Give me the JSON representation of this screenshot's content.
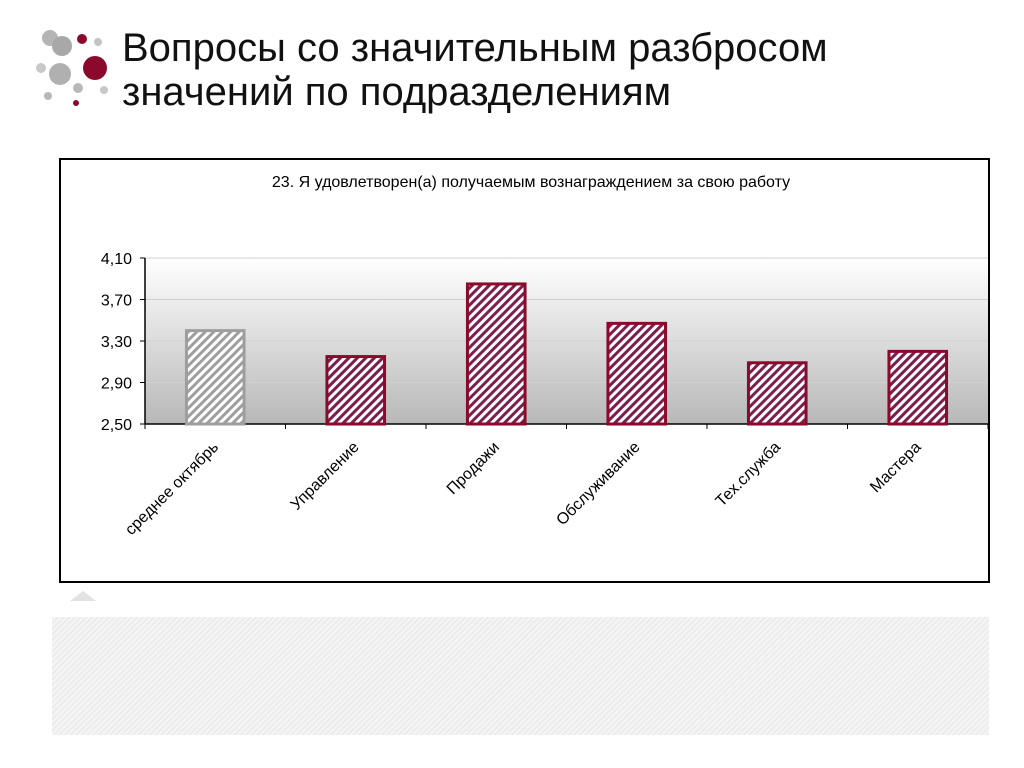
{
  "slide": {
    "title_line1": "Вопросы со значительным разбросом",
    "title_line2": "значений по подразделениям"
  },
  "colors": {
    "accent": "#8b0a2c",
    "bar_fill": "#7a1f4e",
    "highlight_bar": "#9e9e9e",
    "plot_gradient_top": "#ffffff",
    "plot_gradient_bottom": "#b8b8b8"
  },
  "chart_data": {
    "type": "bar",
    "title": "23. Я удовлетворен(а) получаемым вознаграждением за свою работу",
    "categories": [
      "среднее октябрь",
      "Управление",
      "Продажи",
      "Обслуживание",
      "Тех.служба",
      "Мастера"
    ],
    "values": [
      3.4,
      3.15,
      3.85,
      3.47,
      3.09,
      3.2
    ],
    "highlighted_category": "среднее октябрь",
    "ylim": [
      2.5,
      4.1
    ],
    "yticks": [
      "4,10",
      "3,70",
      "3,30",
      "2,90",
      "2,50"
    ],
    "ytick_values": [
      4.1,
      3.7,
      3.3,
      2.9,
      2.5
    ],
    "xlabel": "",
    "ylabel": "",
    "grid": true,
    "legend": "none"
  }
}
